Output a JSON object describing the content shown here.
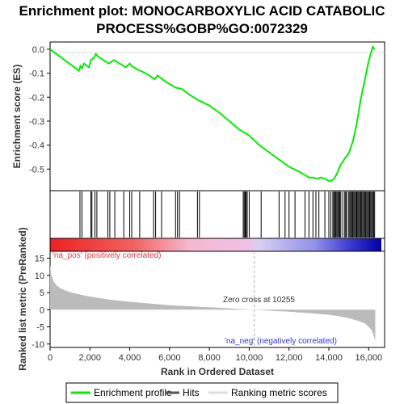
{
  "title_line1": "Enrichment plot: MONOCARBOXYLIC ACID CATABOLIC",
  "title_line2": "PROCESS%GOBP%GO:0072329",
  "colors": {
    "es_line": "#00ee00",
    "hits": "#000000",
    "metric_fill": "#bbbbbb",
    "pos_label": "#ee3333",
    "neg_label": "#3333cc",
    "zero_line": "#aaaaaa"
  },
  "chart_data": [
    {
      "type": "line",
      "name": "enrichment-profile",
      "ylabel": "Enrichment score (ES)",
      "xlim": [
        0,
        16800
      ],
      "ylim": [
        -0.59,
        0.03
      ],
      "yticks": [
        0.0,
        -0.1,
        -0.2,
        -0.3,
        -0.4,
        -0.5
      ],
      "ytick_labels": [
        "0.0",
        "-0.1",
        "-0.2",
        "-0.3",
        "-0.4",
        "-0.5"
      ],
      "x": [
        0,
        1450,
        1520,
        1600,
        1700,
        1950,
        2050,
        2200,
        2300,
        2400,
        2950,
        3200,
        3300,
        3500,
        3800,
        4000,
        4100,
        4400,
        4800,
        5250,
        5400,
        5800,
        6300,
        6600,
        7000,
        7500,
        8000,
        8500,
        9000,
        9500,
        10000,
        10500,
        11000,
        11500,
        12000,
        12500,
        12800,
        13000,
        13200,
        13400,
        13600,
        13800,
        14000,
        14200,
        14300,
        14400,
        14500,
        14600,
        14700,
        14800,
        14900,
        15000,
        15100,
        15200,
        15300,
        15400,
        15500,
        15600,
        15700,
        15800,
        15900,
        16000,
        16100,
        16200,
        16300
      ],
      "y": [
        0.0,
        -0.09,
        -0.07,
        -0.08,
        -0.06,
        -0.075,
        -0.045,
        -0.035,
        -0.02,
        -0.03,
        -0.06,
        -0.045,
        -0.05,
        -0.06,
        -0.075,
        -0.06,
        -0.07,
        -0.085,
        -0.1,
        -0.125,
        -0.11,
        -0.135,
        -0.16,
        -0.165,
        -0.19,
        -0.215,
        -0.235,
        -0.265,
        -0.3,
        -0.335,
        -0.36,
        -0.4,
        -0.43,
        -0.46,
        -0.49,
        -0.51,
        -0.525,
        -0.535,
        -0.535,
        -0.54,
        -0.535,
        -0.54,
        -0.55,
        -0.545,
        -0.535,
        -0.52,
        -0.5,
        -0.48,
        -0.47,
        -0.455,
        -0.445,
        -0.435,
        -0.41,
        -0.385,
        -0.35,
        -0.31,
        -0.26,
        -0.21,
        -0.17,
        -0.13,
        -0.09,
        -0.05,
        -0.02,
        0.01,
        0.0
      ]
    },
    {
      "type": "scatter",
      "name": "hits",
      "legend": "Hits",
      "x": [
        1500,
        1600,
        2050,
        2100,
        2250,
        2350,
        2900,
        3000,
        3250,
        3700,
        4000,
        4100,
        4500,
        5200,
        5300,
        5600,
        6300,
        6400,
        6500,
        7400,
        7500,
        9700,
        9750,
        9800,
        9850,
        9900,
        10000,
        10600,
        11500,
        11800,
        12000,
        12300,
        12800,
        13000,
        13200,
        13350,
        13500,
        13800,
        14000,
        14100,
        14200,
        14250,
        14300,
        14350,
        14400,
        14450,
        14500,
        14550,
        14600,
        14700,
        14800,
        14850,
        14900,
        15000,
        15050,
        15100,
        15150,
        15200,
        15250,
        15300,
        15350,
        15400,
        15450,
        15500,
        15550,
        15600,
        15650,
        15700,
        15750,
        15800,
        15850,
        15900,
        15950,
        16000,
        16050,
        16100,
        16150,
        16200,
        16250,
        16300
      ]
    },
    {
      "type": "area",
      "name": "ranked-list-metric",
      "legend": "Ranking metric scores",
      "ylabel": "Ranked list metric (PreRanked)",
      "xlabel": "Rank in Ordered Dataset",
      "xlim": [
        0,
        16800
      ],
      "ylim": [
        -11,
        17
      ],
      "xticks": [
        0,
        2000,
        4000,
        6000,
        8000,
        10000,
        12000,
        14000,
        16000
      ],
      "xtick_labels": [
        "0",
        "2,000",
        "4,000",
        "6,000",
        "8,000",
        "10,000",
        "12,000",
        "14,000",
        "16,000"
      ],
      "yticks": [
        15,
        10,
        5,
        0,
        -5,
        -10
      ],
      "ytick_labels": [
        "15",
        "10",
        "5",
        "0",
        "-5",
        "-10"
      ],
      "x": [
        0,
        50,
        150,
        300,
        500,
        800,
        1200,
        2000,
        3000,
        4000,
        5000,
        6000,
        7000,
        8000,
        9000,
        10255,
        11000,
        12000,
        13000,
        14000,
        14500,
        15000,
        15500,
        15800,
        16000,
        16150,
        16250,
        16320,
        16330
      ],
      "y": [
        13.0,
        10.5,
        8.5,
        7.2,
        6.3,
        5.5,
        4.8,
        3.8,
        2.9,
        2.3,
        1.8,
        1.3,
        1.0,
        0.7,
        0.4,
        0.0,
        -0.3,
        -0.6,
        -1.0,
        -1.5,
        -1.9,
        -2.5,
        -3.3,
        -4.0,
        -5.0,
        -6.0,
        -7.5,
        -9.0,
        -10.0
      ],
      "zero_cross": 10255
    }
  ],
  "annotations": {
    "pos_label": "'na_pos' (positively correlated)",
    "neg_label": "'na_neg' (negatively correlated)",
    "zero_cross": "Zero cross at 10255"
  },
  "legend": {
    "items": [
      "Enrichment profile",
      "Hits",
      "Ranking metric scores"
    ]
  }
}
